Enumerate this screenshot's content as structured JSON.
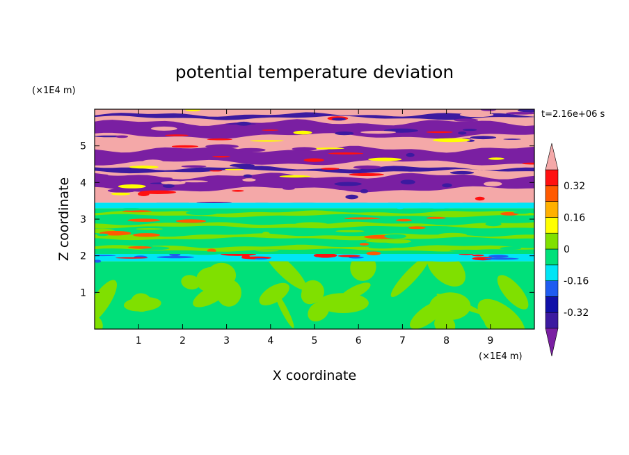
{
  "chart_data": {
    "type": "heatmap",
    "title": "potential temperature deviation",
    "xlabel": "X coordinate",
    "ylabel": "Z coordinate",
    "x_unit": "(×1E4 m)",
    "y_unit": "(×1E4 m)",
    "time_label": "t=2.16e+06 s",
    "xlim": [
      0,
      10
    ],
    "ylim": [
      0,
      6
    ],
    "x_ticks": [
      "1",
      "2",
      "3",
      "4",
      "5",
      "6",
      "7",
      "8",
      "9"
    ],
    "y_ticks": [
      "1",
      "2",
      "3",
      "4",
      "5"
    ],
    "colorbar": {
      "levels": [
        -0.4,
        -0.32,
        -0.24,
        -0.16,
        -0.08,
        0,
        0.08,
        0.16,
        0.24,
        0.32,
        0.4
      ],
      "colors": [
        "#7a1fa2",
        "#3c1aa0",
        "#1010a8",
        "#1f5cf0",
        "#00e5f5",
        "#00e07a",
        "#80e000",
        "#ffff00",
        "#ffb000",
        "#ff5a00",
        "#ff1010",
        "#f4a8a8"
      ],
      "tick_labels": [
        "-0.32",
        "-0.16",
        "0",
        "0.16",
        "0.32"
      ]
    },
    "layers": [
      {
        "z_range": [
          0,
          1.85
        ],
        "pattern": "swirled eddies",
        "colors": [
          "#00e07a",
          "#80e000"
        ]
      },
      {
        "z_range": [
          1.85,
          2.05
        ],
        "pattern": "thin band",
        "colors": [
          "#00e5f5",
          "#1f5cf0",
          "#ff1010"
        ]
      },
      {
        "z_range": [
          2.05,
          3.3
        ],
        "pattern": "weak layered",
        "colors": [
          "#00e07a",
          "#80e000",
          "#ff5a00"
        ]
      },
      {
        "z_range": [
          3.3,
          3.45
        ],
        "pattern": "thin band",
        "colors": [
          "#00e5f5"
        ]
      },
      {
        "z_range": [
          3.45,
          6.0
        ],
        "pattern": "alternating strong layers",
        "colors": [
          "#f4a8a8",
          "#7a1fa2",
          "#3c1aa0",
          "#ff1010",
          "#ffff00"
        ]
      }
    ]
  }
}
